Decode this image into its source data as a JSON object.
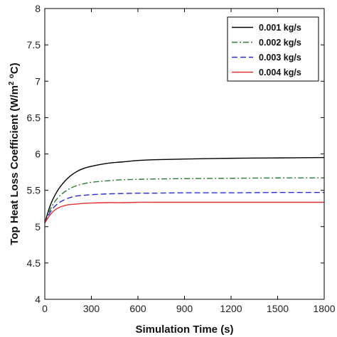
{
  "chart_data": {
    "type": "line",
    "xlabel": "Simulation Time (s)",
    "ylabel_main": "Top Heat Loss Coefficient (W/m",
    "ylabel_sup": "2",
    "ylabel_mid": " ",
    "ylabel_sup2": "o",
    "ylabel_end": "C)",
    "xlim": [
      0,
      1800
    ],
    "ylim": [
      4,
      8
    ],
    "xticks": [
      0,
      300,
      600,
      900,
      1200,
      1500,
      1800
    ],
    "xtick_labels": [
      "0",
      "300",
      "600",
      "900",
      "1200",
      "1500",
      "1800"
    ],
    "yticks": [
      4,
      4.5,
      5,
      5.5,
      6,
      6.5,
      7,
      7.5,
      8
    ],
    "ytick_labels": [
      "4",
      "4.5",
      "5",
      "5.5",
      "6",
      "6.5",
      "7",
      "7.5",
      "8"
    ],
    "grid": false,
    "legend_position": "top-right",
    "series": [
      {
        "name": "0.001 kg/s",
        "color": "#000000",
        "dash": "solid",
        "x": [
          0,
          30,
          60,
          100,
          150,
          200,
          250,
          300,
          400,
          500,
          600,
          700,
          900,
          1200,
          1500,
          1800
        ],
        "y": [
          5.05,
          5.26,
          5.41,
          5.55,
          5.67,
          5.75,
          5.8,
          5.83,
          5.87,
          5.89,
          5.91,
          5.92,
          5.93,
          5.94,
          5.945,
          5.95
        ]
      },
      {
        "name": "0.002 kg/s",
        "color": "#2e7d32",
        "dash": "dashdot",
        "x": [
          0,
          30,
          60,
          100,
          150,
          200,
          250,
          300,
          400,
          500,
          600,
          700,
          900,
          1200,
          1500,
          1800
        ],
        "y": [
          5.05,
          5.21,
          5.33,
          5.43,
          5.51,
          5.56,
          5.59,
          5.61,
          5.63,
          5.645,
          5.65,
          5.655,
          5.66,
          5.665,
          5.67,
          5.67
        ]
      },
      {
        "name": "0.003 kg/s",
        "color": "#2b2bd6",
        "dash": "dashed",
        "x": [
          0,
          30,
          60,
          100,
          150,
          200,
          250,
          300,
          400,
          500,
          600,
          700,
          900,
          1200,
          1500,
          1800
        ],
        "y": [
          5.05,
          5.18,
          5.27,
          5.34,
          5.39,
          5.42,
          5.43,
          5.44,
          5.45,
          5.455,
          5.46,
          5.46,
          5.465,
          5.465,
          5.47,
          5.47
        ]
      },
      {
        "name": "0.004 kg/s",
        "color": "#e03030",
        "dash": "solid",
        "x": [
          0,
          30,
          60,
          100,
          150,
          200,
          250,
          300,
          400,
          500,
          600,
          700,
          900,
          1200,
          1500,
          1800
        ],
        "y": [
          5.05,
          5.15,
          5.22,
          5.27,
          5.3,
          5.31,
          5.32,
          5.325,
          5.33,
          5.33,
          5.335,
          5.335,
          5.335,
          5.335,
          5.335,
          5.335
        ]
      }
    ]
  }
}
